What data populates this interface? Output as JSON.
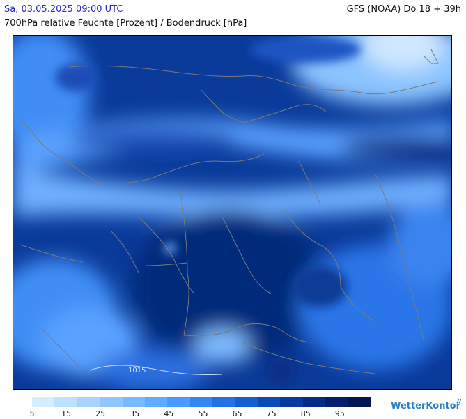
{
  "header": {
    "datetime": "Sa, 03.05.2025 09:00 UTC",
    "model_run": "GFS (NOAA) Do 18 + 39h",
    "parameter": "700hPa relative Feuchte [Prozent] / Bodendruck [hPa]"
  },
  "map": {
    "region": "Deutschland",
    "isobar_label": "1015"
  },
  "legend": {
    "colors": [
      "#d6ecff",
      "#bfe0ff",
      "#a8d4ff",
      "#90c7ff",
      "#78b9ff",
      "#60aaff",
      "#4a9aff",
      "#3486f5",
      "#2271e6",
      "#155dd0",
      "#0c4ab8",
      "#073a9e",
      "#052c86",
      "#031f6c",
      "#021654"
    ],
    "ticks": [
      "5",
      "15",
      "25",
      "35",
      "45",
      "55",
      "65",
      "75",
      "85",
      "95"
    ]
  },
  "brand": {
    "name": "WetterKontor",
    "icon": "wetterkontor-logo-icon"
  }
}
